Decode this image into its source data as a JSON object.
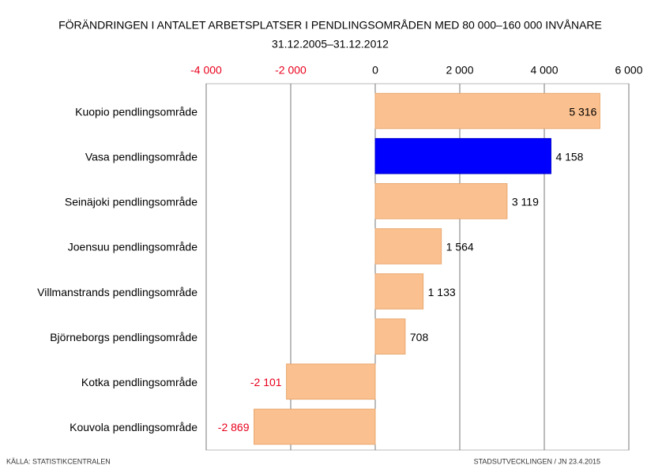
{
  "chart_data": {
    "type": "barh",
    "title": "FÖRÄNDRINGEN I ANTALET ARBETSPLATSER I PENDLINGSOMRÅDEN MED 80 000–160 000 INVÅNARE",
    "subtitle": "31.12.2005–31.12.2012",
    "categories": [
      "Kuopio pendlingsområde",
      "Vasa pendlingsområde",
      "Seinäjoki pendlingsområde",
      "Joensuu pendlingsområde",
      "Villmanstrands pendlingsområde",
      "Björneborgs pendlingsområde",
      "Kotka pendlingsområde",
      "Kouvola pendlingsområde"
    ],
    "values": [
      5316,
      4158,
      3119,
      1564,
      1133,
      708,
      -2101,
      -2869
    ],
    "value_labels": [
      "5 316",
      "4 158",
      "3 119",
      "1 564",
      "1 133",
      "708",
      "-2 101",
      "-2 869"
    ],
    "colors": [
      "#fac08f",
      "#0000ff",
      "#fac08f",
      "#fac08f",
      "#fac08f",
      "#fac08f",
      "#fac08f",
      "#fac08f"
    ],
    "negative_color": "#e8001c",
    "xlim": [
      -4000,
      6000
    ],
    "xticks": [
      {
        "value": -4000,
        "label": "-4 000"
      },
      {
        "value": -2000,
        "label": "-2 000"
      },
      0,
      {
        "value": 2000,
        "label": "2 000"
      },
      {
        "value": 4000,
        "label": "4 000"
      },
      {
        "value": 6000,
        "label": "6 000"
      }
    ],
    "grid": true,
    "source": "KÄLLA: STATISTIKCENTRALEN",
    "credit": "STADSUTVECKLINGEN / JN 23.4.2015"
  }
}
